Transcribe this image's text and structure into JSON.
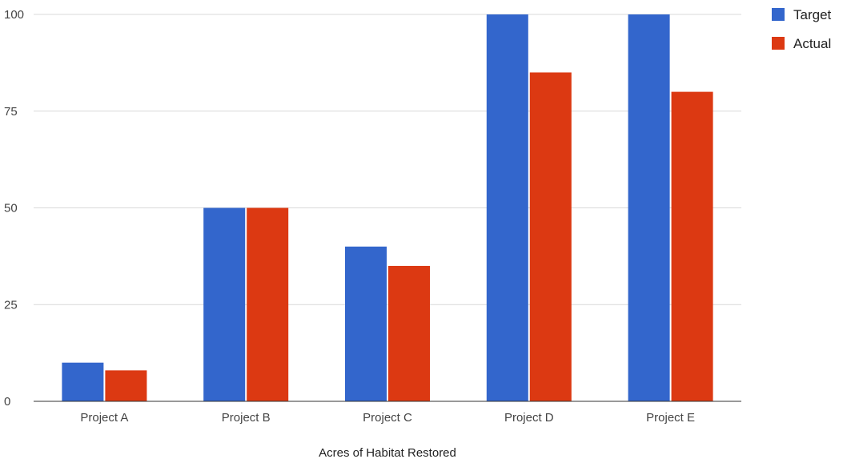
{
  "chart_data": {
    "type": "bar",
    "title": "",
    "xlabel": "Acres of Habitat Restored",
    "ylabel": "",
    "categories": [
      "Project A",
      "Project B",
      "Project C",
      "Project D",
      "Project E"
    ],
    "series": [
      {
        "name": "Target",
        "color": "#3366cc",
        "values": [
          10,
          50,
          40,
          100,
          100
        ]
      },
      {
        "name": "Actual",
        "color": "#dc3912",
        "values": [
          8,
          50,
          35,
          85,
          80
        ]
      }
    ],
    "ylim": [
      0,
      100
    ],
    "yticks": [
      "0",
      "25",
      "50",
      "75",
      "100"
    ],
    "grid": true,
    "legend_position": "top-right"
  }
}
